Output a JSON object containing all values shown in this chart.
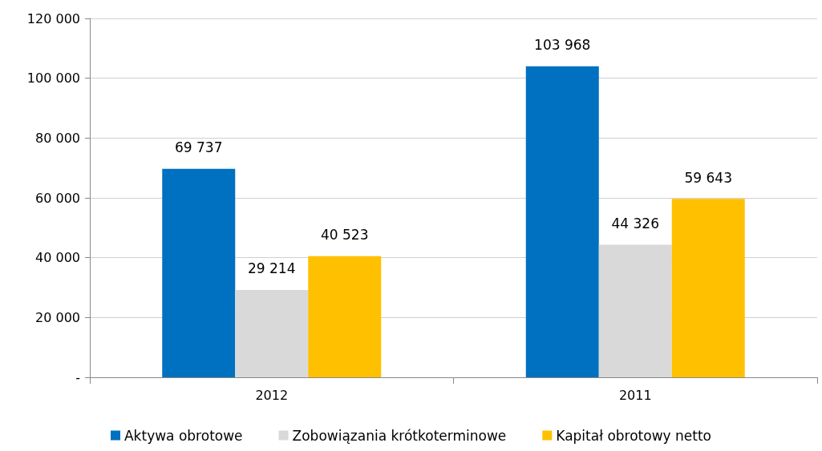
{
  "chart_data": {
    "type": "bar",
    "categories": [
      "2012",
      "2011"
    ],
    "series": [
      {
        "name": "Aktywa obrotowe",
        "color": "#0070c0",
        "values": [
          69737,
          103968
        ],
        "value_labels": [
          "69 737",
          "103 968"
        ]
      },
      {
        "name": "Zobowiązania krótkoterminowe",
        "color": "#d9d9d9",
        "values": [
          29214,
          44326
        ],
        "value_labels": [
          "29 214",
          "44 326"
        ]
      },
      {
        "name": "Kapitał obrotowy netto",
        "color": "#ffc000",
        "values": [
          40523,
          59643
        ],
        "value_labels": [
          "40 523",
          "59 643"
        ]
      }
    ],
    "ylim": [
      0,
      120000
    ],
    "yticks": [
      {
        "value": 0,
        "label": "-"
      },
      {
        "value": 20000,
        "label": "20 000"
      },
      {
        "value": 40000,
        "label": "40 000"
      },
      {
        "value": 60000,
        "label": "60 000"
      },
      {
        "value": 80000,
        "label": "80 000"
      },
      {
        "value": 100000,
        "label": "100 000"
      },
      {
        "value": 120000,
        "label": "120 000"
      }
    ],
    "grid": "y",
    "legend": "bottom"
  }
}
